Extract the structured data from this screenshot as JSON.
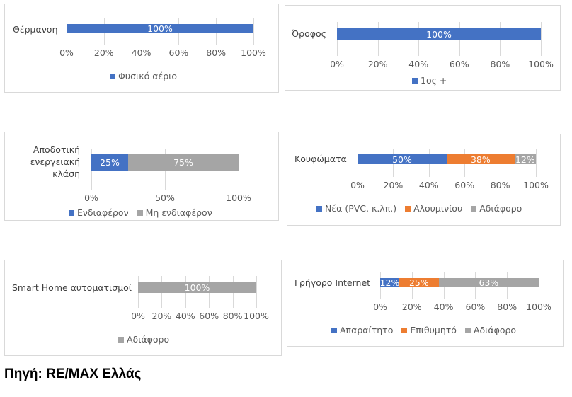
{
  "colors": {
    "blue": "#4472c4",
    "orange": "#ed7d31",
    "gray": "#a5a5a5"
  },
  "chart_data": [
    {
      "type": "bar",
      "orientation": "horizontal",
      "stacked": true,
      "categories": [
        "Θέρμανση"
      ],
      "series": [
        {
          "name": "Φυσικό αέριο",
          "values": [
            100
          ],
          "color": "blue"
        }
      ],
      "data_labels": [
        "100%"
      ],
      "ticks": [
        "0%",
        "20%",
        "40%",
        "60%",
        "80%",
        "100%"
      ],
      "xlim": [
        0,
        100
      ],
      "legend": "bottom"
    },
    {
      "type": "bar",
      "orientation": "horizontal",
      "stacked": true,
      "categories": [
        "Όροφος"
      ],
      "series": [
        {
          "name": "1ος +",
          "values": [
            100
          ],
          "color": "blue"
        }
      ],
      "data_labels": [
        "100%"
      ],
      "ticks": [
        "0%",
        "20%",
        "40%",
        "60%",
        "80%",
        "100%"
      ],
      "xlim": [
        0,
        100
      ],
      "legend": "bottom"
    },
    {
      "type": "bar",
      "orientation": "horizontal",
      "stacked": true,
      "categories": [
        "Αποδοτική ενεργειακή κλάση"
      ],
      "category_lines": [
        "Αποδοτική",
        "ενεργειακή",
        "κλάση"
      ],
      "series": [
        {
          "name": "Ενδιαφέρον",
          "values": [
            25
          ],
          "color": "blue"
        },
        {
          "name": "Μη ενδιαφέρον",
          "values": [
            75
          ],
          "color": "gray"
        }
      ],
      "data_labels": [
        "25%",
        "75%"
      ],
      "ticks": [
        "0%",
        "50%",
        "100%"
      ],
      "xlim": [
        0,
        100
      ],
      "legend": "bottom"
    },
    {
      "type": "bar",
      "orientation": "horizontal",
      "stacked": true,
      "categories": [
        "Κουφώματα"
      ],
      "series": [
        {
          "name": "Νέα (PVC, κ.λπ.)",
          "values": [
            50
          ],
          "color": "blue"
        },
        {
          "name": "Αλουμινίου",
          "values": [
            38
          ],
          "color": "orange"
        },
        {
          "name": "Αδιάφορο",
          "values": [
            12
          ],
          "color": "gray"
        }
      ],
      "data_labels": [
        "50%",
        "38%",
        "12%"
      ],
      "ticks": [
        "0%",
        "20%",
        "40%",
        "60%",
        "80%",
        "100%"
      ],
      "xlim": [
        0,
        100
      ],
      "legend": "bottom"
    },
    {
      "type": "bar",
      "orientation": "horizontal",
      "stacked": true,
      "categories": [
        "Smart Home αυτοματισμοί"
      ],
      "series": [
        {
          "name": "Αδιάφορο",
          "values": [
            100
          ],
          "color": "gray"
        }
      ],
      "data_labels": [
        "100%"
      ],
      "ticks": [
        "0%",
        "20%",
        "40%",
        "60%",
        "80%",
        "100%"
      ],
      "xlim": [
        0,
        100
      ],
      "legend": "bottom"
    },
    {
      "type": "bar",
      "orientation": "horizontal",
      "stacked": true,
      "categories": [
        "Γρήγορο Internet"
      ],
      "series": [
        {
          "name": "Απαραίτητο",
          "values": [
            12
          ],
          "color": "blue"
        },
        {
          "name": "Επιθυμητό",
          "values": [
            25
          ],
          "color": "orange"
        },
        {
          "name": "Αδιάφορο",
          "values": [
            63
          ],
          "color": "gray"
        }
      ],
      "data_labels": [
        "12%",
        "25%",
        "63%"
      ],
      "ticks": [
        "0%",
        "20%",
        "40%",
        "60%",
        "80%",
        "100%"
      ],
      "xlim": [
        0,
        100
      ],
      "legend": "bottom"
    }
  ],
  "source": "Πηγή: RE/MAX Ελλάς"
}
